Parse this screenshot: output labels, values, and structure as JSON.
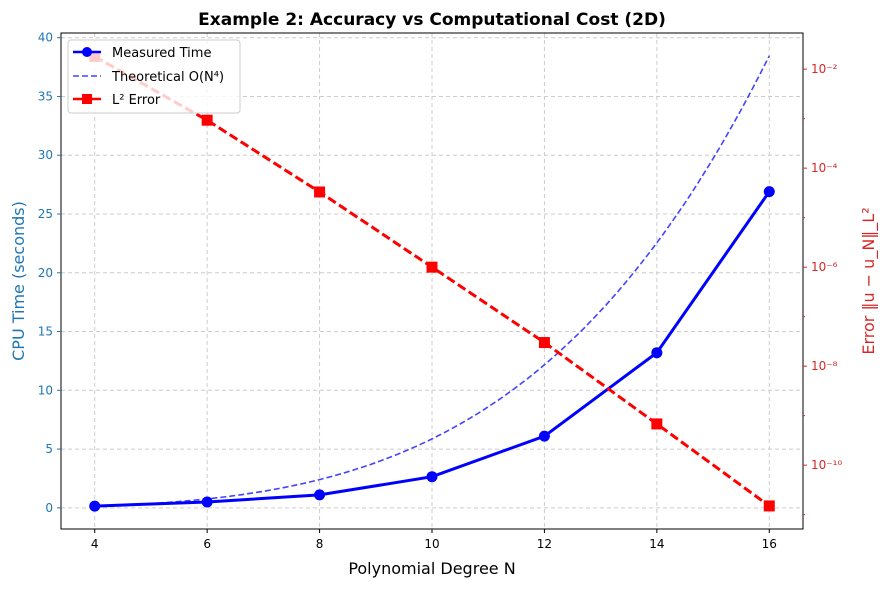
{
  "chart_data": {
    "type": "line",
    "title": "Example 2: Accuracy vs Computational Cost (2D)",
    "xlabel": "Polynomial Degree N",
    "ylabel": "CPU Time (seconds)",
    "ylabel_right": "Error ‖u − u_N‖_L²",
    "x": [
      4,
      6,
      8,
      10,
      12,
      14,
      16
    ],
    "xlim": [
      3.4,
      16.6
    ],
    "ylim": [
      -1.8,
      40.4
    ],
    "ylim_right_log10": [
      -11.29,
      -1.27
    ],
    "xticks": [
      "4",
      "6",
      "8",
      "10",
      "12",
      "14",
      "16"
    ],
    "yticks": [
      "0",
      "5",
      "10",
      "15",
      "20",
      "25",
      "30",
      "35",
      "40"
    ],
    "yticks_right": [
      {
        "exp": -2,
        "label": "10⁻²"
      },
      {
        "exp": -4,
        "label": "10⁻⁴"
      },
      {
        "exp": -6,
        "label": "10⁻⁶"
      },
      {
        "exp": -8,
        "label": "10⁻⁸"
      },
      {
        "exp": -10,
        "label": "10⁻¹⁰"
      }
    ],
    "grid": true,
    "legend_position": "top-left",
    "series": [
      {
        "name": "Measured Time",
        "axis": "left",
        "color": "#0000ff",
        "style": "solid",
        "marker": "circle",
        "values": [
          0.15,
          0.5,
          1.1,
          2.65,
          6.1,
          13.2,
          26.9
        ]
      },
      {
        "name": "Theoretical O(N⁴)",
        "axis": "left",
        "color": "#4444ff",
        "style": "dashed",
        "marker": "none",
        "formula": "5.87e-4 * N^4"
      },
      {
        "name": "L² Error",
        "axis": "right",
        "color": "#ff0000",
        "style": "dashed",
        "marker": "square",
        "values": [
          0.018,
          0.00093,
          3.3e-05,
          1e-06,
          3e-08,
          6.8e-10,
          1.5e-11
        ]
      }
    ],
    "colors": {
      "left_axis": "#1f77b4",
      "right_axis": "#d62728"
    }
  }
}
